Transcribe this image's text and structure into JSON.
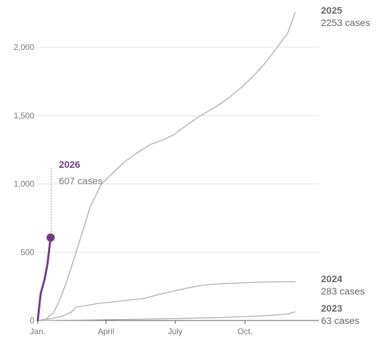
{
  "chart_data": {
    "type": "line",
    "x_unit": "day_of_year",
    "xlim": [
      1,
      365
    ],
    "ylim": [
      0,
      2300
    ],
    "y_ticks": [
      0,
      500,
      1000,
      1500,
      2000
    ],
    "y_tick_labels": [
      "0",
      "500",
      "1,000",
      "1,500",
      "2,000"
    ],
    "x_ticks": [
      {
        "day": 1,
        "label": "Jan."
      },
      {
        "day": 91,
        "label": "April"
      },
      {
        "day": 182,
        "label": "July"
      },
      {
        "day": 274,
        "label": "Oct."
      }
    ],
    "grid": true,
    "colors": {
      "past_series": "#aaaaaa",
      "current_series": "#6f3a8c",
      "label_gray": "#777777",
      "grid": "#e6e6e6",
      "baseline": "#555555"
    },
    "series": [
      {
        "name": "2025",
        "label_count": "2253 cases",
        "highlight": false,
        "points": [
          [
            1,
            0
          ],
          [
            12,
            10
          ],
          [
            22,
            60
          ],
          [
            30,
            150
          ],
          [
            40,
            300
          ],
          [
            55,
            560
          ],
          [
            70,
            830
          ],
          [
            85,
            1000
          ],
          [
            100,
            1080
          ],
          [
            115,
            1160
          ],
          [
            130,
            1220
          ],
          [
            150,
            1290
          ],
          [
            165,
            1320
          ],
          [
            180,
            1360
          ],
          [
            195,
            1420
          ],
          [
            210,
            1480
          ],
          [
            225,
            1530
          ],
          [
            240,
            1580
          ],
          [
            255,
            1640
          ],
          [
            270,
            1710
          ],
          [
            285,
            1790
          ],
          [
            300,
            1880
          ],
          [
            315,
            1990
          ],
          [
            330,
            2100
          ],
          [
            340,
            2253
          ]
        ]
      },
      {
        "name": "2024",
        "label_count": "283 cases",
        "highlight": false,
        "points": [
          [
            1,
            0
          ],
          [
            20,
            15
          ],
          [
            35,
            35
          ],
          [
            45,
            60
          ],
          [
            52,
            100
          ],
          [
            65,
            110
          ],
          [
            80,
            125
          ],
          [
            100,
            135
          ],
          [
            120,
            150
          ],
          [
            140,
            160
          ],
          [
            160,
            190
          ],
          [
            180,
            215
          ],
          [
            200,
            240
          ],
          [
            220,
            260
          ],
          [
            240,
            268
          ],
          [
            260,
            273
          ],
          [
            280,
            278
          ],
          [
            300,
            281
          ],
          [
            320,
            283
          ],
          [
            340,
            283
          ]
        ]
      },
      {
        "name": "2023",
        "label_count": "63 cases",
        "highlight": false,
        "points": [
          [
            1,
            0
          ],
          [
            60,
            3
          ],
          [
            120,
            8
          ],
          [
            180,
            14
          ],
          [
            240,
            22
          ],
          [
            280,
            30
          ],
          [
            310,
            38
          ],
          [
            330,
            48
          ],
          [
            340,
            63
          ]
        ]
      },
      {
        "name": "2026",
        "label_count": "607 cases",
        "highlight": true,
        "points": [
          [
            1,
            0
          ],
          [
            5,
            200
          ],
          [
            10,
            300
          ],
          [
            14,
            420
          ],
          [
            18,
            607
          ]
        ]
      }
    ]
  }
}
